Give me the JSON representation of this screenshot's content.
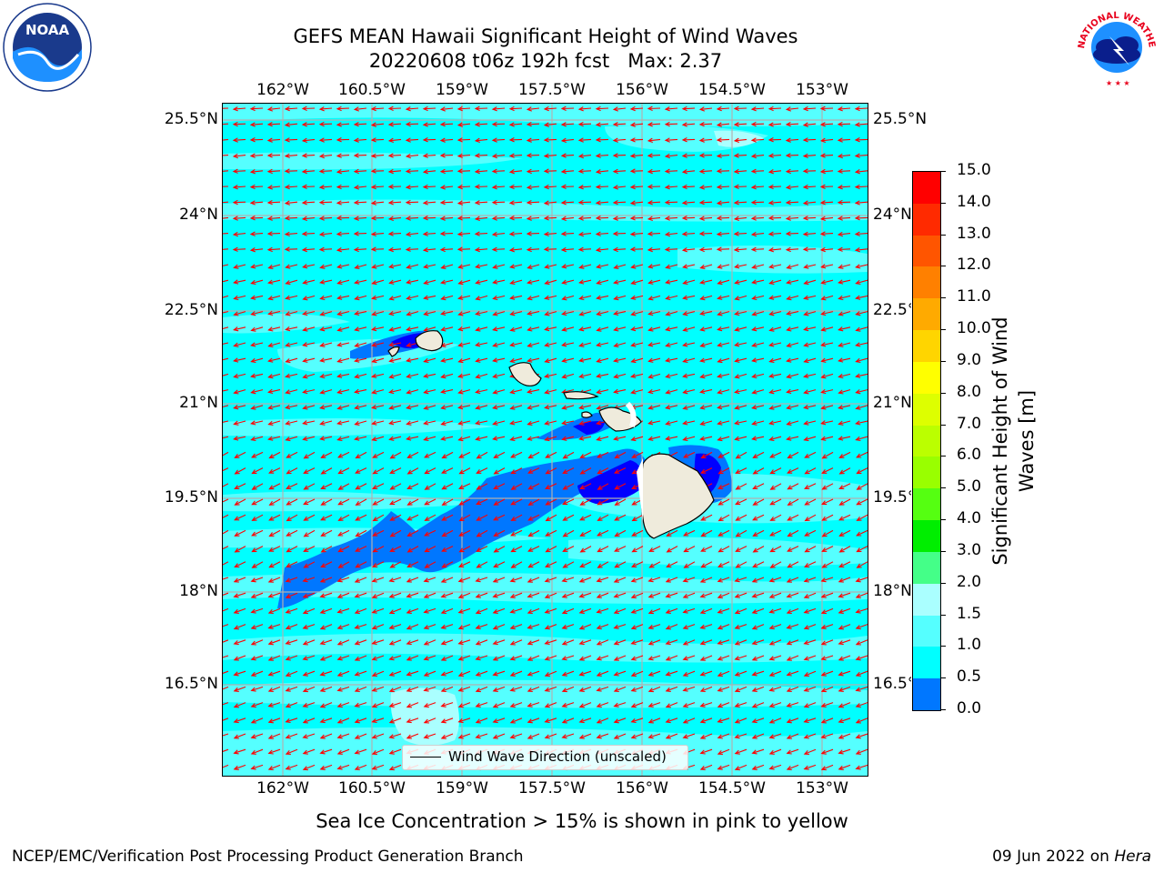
{
  "title": {
    "line1": "GEFS MEAN Hawaii Significant Height of Wind Waves",
    "line2": "20220608 t06z 192h fcst   Max: 2.37"
  },
  "axes": {
    "lon_ticks": [
      "162°W",
      "160.5°W",
      "159°W",
      "157.5°W",
      "156°W",
      "154.5°W",
      "153°W"
    ],
    "lat_ticks": [
      "25.5°N",
      "24°N",
      "22.5°N",
      "21°N",
      "19.5°N",
      "18°N",
      "16.5°N"
    ]
  },
  "legend": {
    "label": "Wind Wave Direction (unscaled)"
  },
  "colorbar": {
    "title_line1": "Significant Height of Wind",
    "title_line2": "Waves [m]",
    "tick_labels": [
      "15.0",
      "14.0",
      "13.0",
      "12.0",
      "11.0",
      "10.0",
      "9.0",
      "8.0",
      "7.0",
      "6.0",
      "5.0",
      "4.0",
      "3.0",
      "2.0",
      "1.5",
      "1.0",
      "0.5",
      "0.0"
    ],
    "colors": [
      "#ff0000",
      "#ff2a00",
      "#ff5500",
      "#ff8000",
      "#ffaa00",
      "#ffd500",
      "#ffff00",
      "#ddff00",
      "#bbff00",
      "#99ff00",
      "#55ff11",
      "#00ee00",
      "#44ff88",
      "#aaffff",
      "#55ffff",
      "#00ffff",
      "#0077ff",
      "#0000ff"
    ]
  },
  "map_colors": {
    "ocean_1_5": "#00ffff",
    "band_1_5_2": "#55ffff",
    "band_2_3": "#aaffff",
    "lee_0_5_1": "#0077ff",
    "lee_0_0_5": "#0000ff",
    "land": "#efebdc",
    "arrow": "#ff0000",
    "grid": "#b0b0b0"
  },
  "subtitle": "Sea Ice Concentration > 15% is shown in pink to yellow",
  "footer": {
    "left": "NCEP/EMC/Verification Post Processing Product Generation Branch",
    "right_date": "09 Jun 2022 on ",
    "right_host": "Hera"
  },
  "logos": {
    "noaa_text": "NOAA",
    "nws_text": "NATIONAL WEATHER SERVICE"
  }
}
